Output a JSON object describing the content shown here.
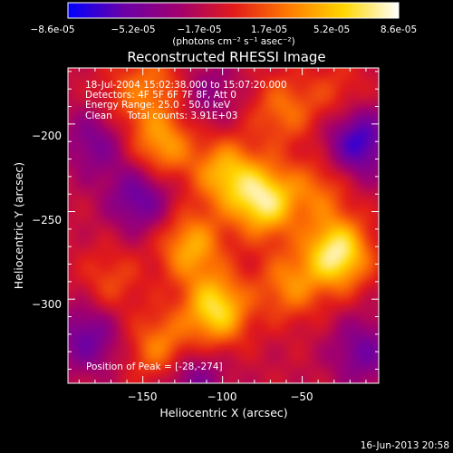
{
  "chart_data": {
    "type": "heatmap",
    "title": "Reconstructed RHESSI Image",
    "xlabel": "Heliocentric X (arcsec)",
    "ylabel": "Heliocentric Y (arcsec)",
    "xlim": [
      -197,
      -2
    ],
    "ylim": [
      -348,
      -168
    ],
    "x_ticks": [
      -150,
      -100,
      -50
    ],
    "y_ticks": [
      -200,
      -250,
      -300
    ],
    "x_tick_labels": [
      "−150",
      "−100",
      "−50"
    ],
    "y_tick_labels": [
      "−200",
      "−250",
      "−300"
    ],
    "colorbar": {
      "min": -8.6e-05,
      "max": 8.6e-05,
      "tick_labels": [
        "−8.6e-05",
        "−5.2e-05",
        "−1.7e-05",
        "1.7e-05",
        "5.2e-05",
        "8.6e-05"
      ],
      "unit_label": "(photons cm⁻² s⁻¹ asec⁻²)",
      "colormap": [
        "#0000ff",
        "#6a00a8",
        "#a00070",
        "#e11a1a",
        "#ff7a00",
        "#ffd700",
        "#ffffff"
      ]
    },
    "annotations": [
      "18-Jul-2004 15:02:38.000 to 15:07:20.000",
      "Detectors: 4F 5F 6F 7F 8F, Att 0",
      "Energy Range: 25.0 - 50.0 keV",
      "Clean     Total counts: 3.91E+03"
    ],
    "peak_label": "Position of Peak = [-28,-274]",
    "peak": [
      -28,
      -274
    ],
    "sources": [
      {
        "x": -74,
        "y": -244,
        "value": 8e-05
      },
      {
        "x": -28,
        "y": -274,
        "value": 8.6e-05
      },
      {
        "x": -104,
        "y": -306,
        "value": 7.5e-05
      },
      {
        "x": -98,
        "y": -228,
        "value": 5.8e-05
      },
      {
        "x": -120,
        "y": -270,
        "value": 5.5e-05
      },
      {
        "x": -138,
        "y": -212,
        "value": 5.2e-05
      },
      {
        "x": -138,
        "y": -328,
        "value": 4.6e-05
      },
      {
        "x": -58,
        "y": -292,
        "value": 4.2e-05
      },
      {
        "x": -62,
        "y": -192,
        "value": 3.6e-05
      },
      {
        "x": -40,
        "y": -238,
        "value": 3.3e-05
      },
      {
        "x": -170,
        "y": -290,
        "value": 2.5e-05
      },
      {
        "x": -160,
        "y": -186,
        "value": 2.4e-05
      },
      {
        "x": -140,
        "y": -176,
        "value": 2.8e-05
      },
      {
        "x": -28,
        "y": -183,
        "value": 2.2e-05
      },
      {
        "x": -15,
        "y": -210,
        "value": -6e-05
      },
      {
        "x": -152,
        "y": -242,
        "value": -4.5e-05
      },
      {
        "x": -185,
        "y": -322,
        "value": -4.2e-05
      },
      {
        "x": -120,
        "y": -345,
        "value": -3.8e-05
      },
      {
        "x": -180,
        "y": -210,
        "value": -3.5e-05
      },
      {
        "x": -12,
        "y": -330,
        "value": -3.8e-05
      },
      {
        "x": -110,
        "y": -182,
        "value": -2.5e-05
      }
    ]
  },
  "footer": {
    "date": "16-Jun-2013 20:58"
  }
}
